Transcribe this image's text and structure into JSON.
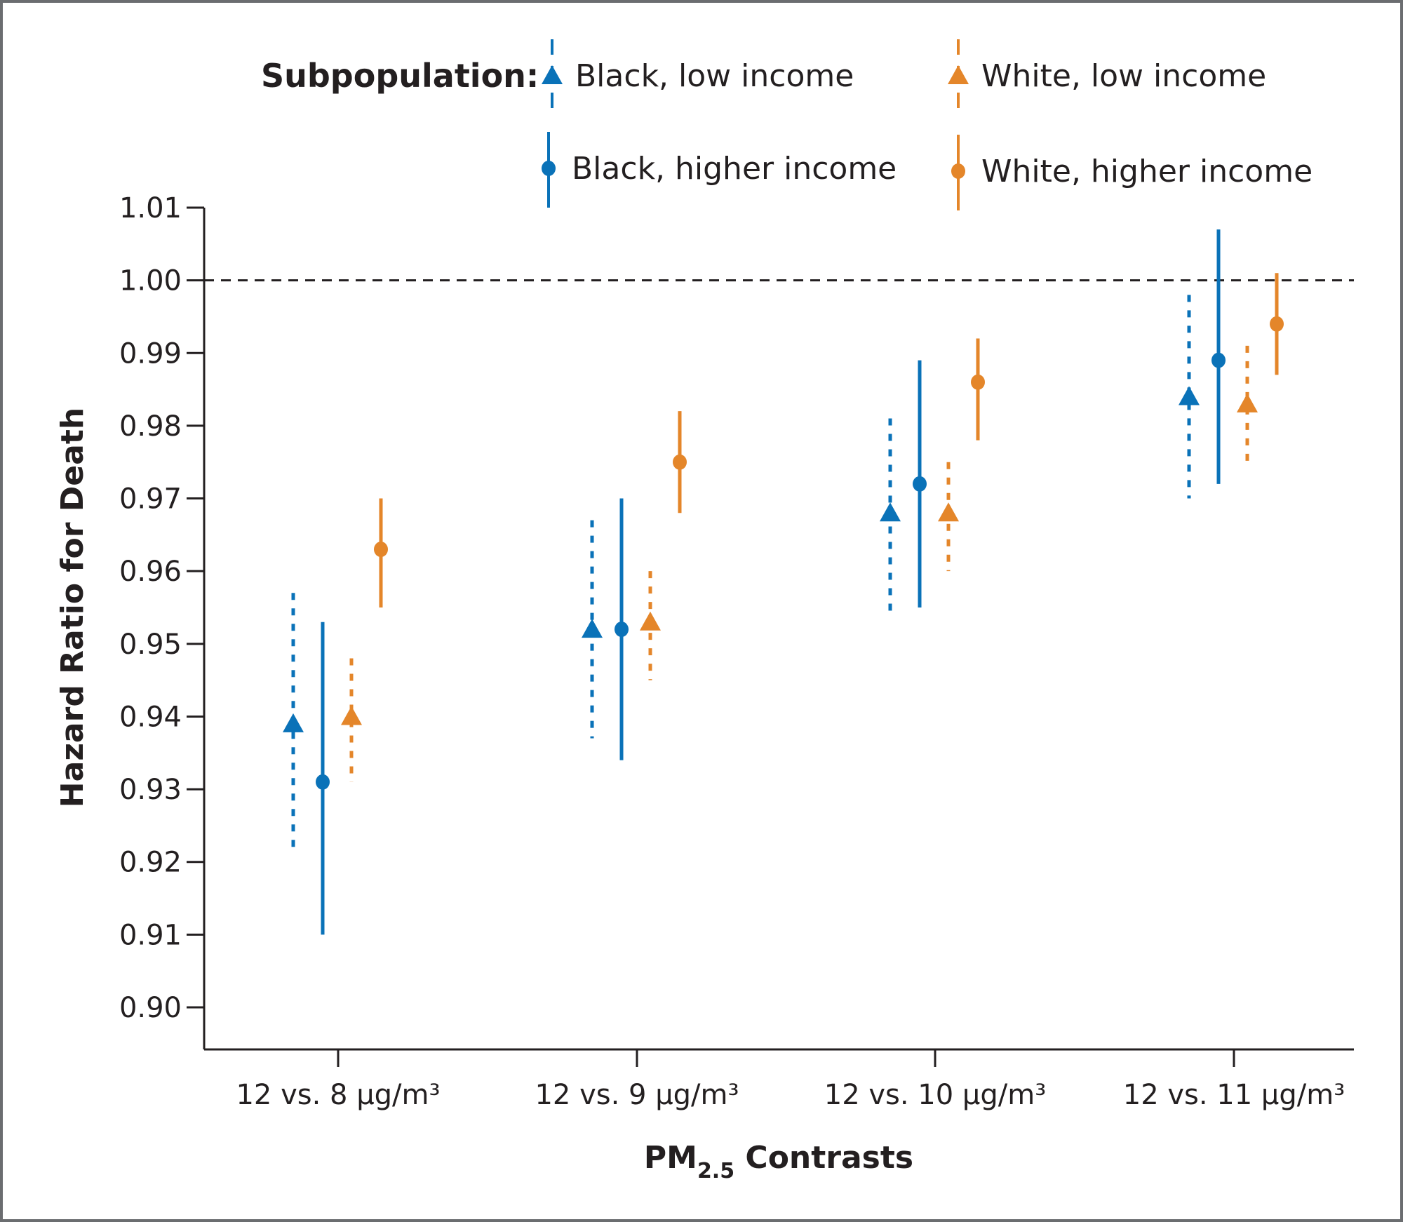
{
  "chart_data": {
    "type": "scatter",
    "subtype": "point-with-error-bars",
    "title": "",
    "xlabel": "PM2.5 Contrasts",
    "xlabel_main": "PM",
    "xlabel_sub": "2.5",
    "xlabel_rest": " Contrasts",
    "ylabel": "Hazard Ratio for Death",
    "ylim": [
      0.9,
      1.01
    ],
    "yticks": [
      "0.90",
      "0.91",
      "0.92",
      "0.93",
      "0.94",
      "0.95",
      "0.96",
      "0.97",
      "0.98",
      "0.99",
      "1.00",
      "1.01"
    ],
    "reference_line": {
      "y": 1.0,
      "style": "dashed",
      "color": "#231f20"
    },
    "categories": [
      "12 vs. 8 μg/m³",
      "12 vs. 9 μg/m³",
      "12 vs. 10 μg/m³",
      "12 vs. 11 μg/m³"
    ],
    "legend": {
      "title": "Subpopulation:",
      "position": "top"
    },
    "series": [
      {
        "name": "Black, low income",
        "color": "#0a72b8",
        "marker": "triangle",
        "line": "dashed",
        "values": [
          0.939,
          0.952,
          0.968,
          0.984
        ],
        "lower": [
          0.921,
          0.937,
          0.954,
          0.97
        ],
        "upper": [
          0.957,
          0.967,
          0.981,
          0.998
        ]
      },
      {
        "name": "Black, higher income",
        "color": "#0a72b8",
        "marker": "circle",
        "line": "solid",
        "values": [
          0.931,
          0.952,
          0.972,
          0.989
        ],
        "lower": [
          0.91,
          0.934,
          0.955,
          0.972
        ],
        "upper": [
          0.953,
          0.97,
          0.989,
          1.007
        ]
      },
      {
        "name": "White, low income",
        "color": "#e4862a",
        "marker": "triangle",
        "line": "dashed",
        "values": [
          0.94,
          0.953,
          0.968,
          0.983
        ],
        "lower": [
          0.931,
          0.945,
          0.96,
          0.975
        ],
        "upper": [
          0.948,
          0.96,
          0.975,
          0.991
        ]
      },
      {
        "name": "White, higher income",
        "color": "#e4862a",
        "marker": "circle",
        "line": "solid",
        "values": [
          0.963,
          0.975,
          0.986,
          0.994
        ],
        "lower": [
          0.955,
          0.968,
          0.978,
          0.987
        ],
        "upper": [
          0.97,
          0.982,
          0.992,
          1.001
        ]
      }
    ],
    "grid": false
  }
}
